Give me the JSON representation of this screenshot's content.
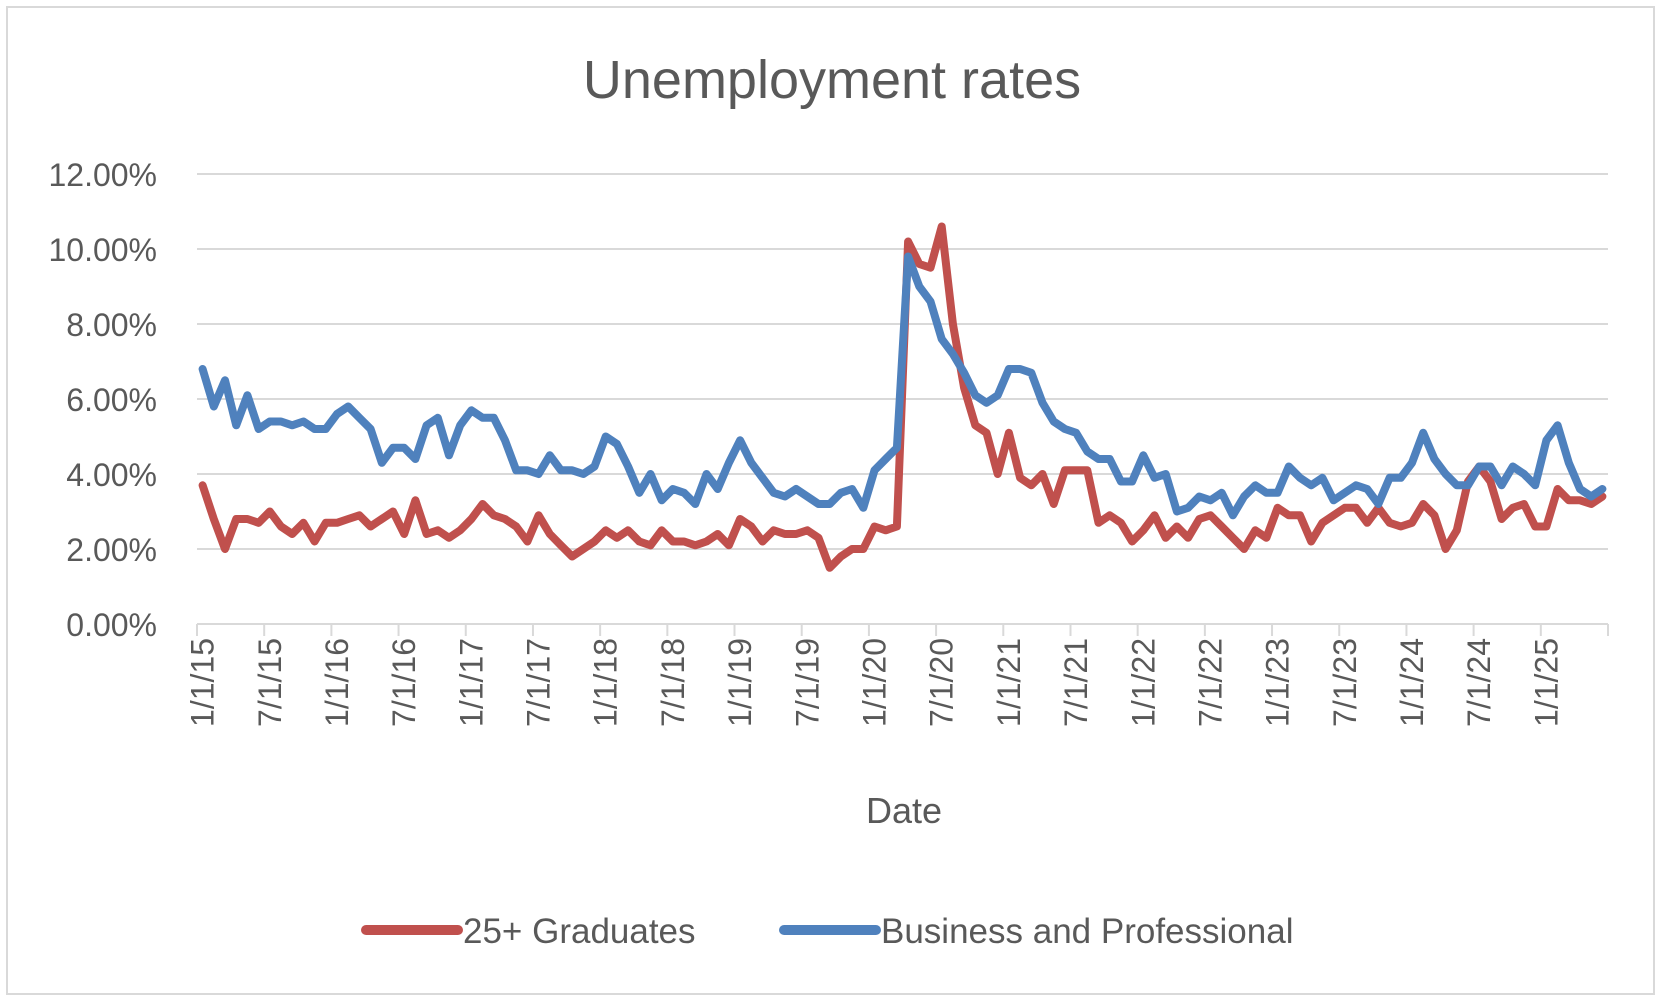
{
  "chart_data": {
    "type": "line",
    "title": "Unemployment rates",
    "xlabel": "Date",
    "ylabel": "",
    "ylim": [
      0,
      0.12
    ],
    "y_ticks": [
      "0.00%",
      "2.00%",
      "4.00%",
      "6.00%",
      "8.00%",
      "10.00%",
      "12.00%"
    ],
    "x_tick_labels": [
      "1/1/15",
      "7/1/15",
      "1/1/16",
      "7/1/16",
      "1/1/17",
      "7/1/17",
      "1/1/18",
      "7/1/18",
      "1/1/19",
      "7/1/19",
      "1/1/20",
      "7/1/20",
      "1/1/21",
      "7/1/21",
      "1/1/22",
      "7/1/22",
      "1/1/23",
      "7/1/23",
      "1/1/24",
      "7/1/24",
      "1/1/25"
    ],
    "x_start": "2015-01",
    "x_end": "2025-12",
    "grid": true,
    "legend_position": "bottom",
    "series": [
      {
        "name": "25+ Graduates",
        "color": "#c0504d",
        "values": [
          0.037,
          0.028,
          0.02,
          0.028,
          0.028,
          0.027,
          0.03,
          0.026,
          0.024,
          0.027,
          0.022,
          0.027,
          0.027,
          0.028,
          0.029,
          0.026,
          0.028,
          0.03,
          0.024,
          0.033,
          0.024,
          0.025,
          0.023,
          0.025,
          0.028,
          0.032,
          0.029,
          0.028,
          0.026,
          0.022,
          0.029,
          0.024,
          0.021,
          0.018,
          0.02,
          0.022,
          0.025,
          0.023,
          0.025,
          0.022,
          0.021,
          0.025,
          0.022,
          0.022,
          0.021,
          0.022,
          0.024,
          0.021,
          0.028,
          0.026,
          0.022,
          0.025,
          0.024,
          0.024,
          0.025,
          0.023,
          0.015,
          0.018,
          0.02,
          0.02,
          0.026,
          0.025,
          0.026,
          0.102,
          0.096,
          0.095,
          0.106,
          0.08,
          0.063,
          0.053,
          0.051,
          0.04,
          0.051,
          0.039,
          0.037,
          0.04,
          0.032,
          0.041,
          0.041,
          0.041,
          0.027,
          0.029,
          0.027,
          0.022,
          0.025,
          0.029,
          0.023,
          0.026,
          0.023,
          0.028,
          0.029,
          0.026,
          0.023,
          0.02,
          0.025,
          0.023,
          0.031,
          0.029,
          0.029,
          0.022,
          0.027,
          0.029,
          0.031,
          0.031,
          0.027,
          0.031,
          0.027,
          0.026,
          0.027,
          0.032,
          0.029,
          0.02,
          0.025,
          0.038,
          0.042,
          0.038,
          0.028,
          0.031,
          0.032,
          0.026,
          0.026,
          0.036,
          0.033,
          0.033,
          0.032,
          0.034
        ]
      },
      {
        "name": "Business and Professional",
        "color": "#4f81bd",
        "values": [
          0.068,
          0.058,
          0.065,
          0.053,
          0.061,
          0.052,
          0.054,
          0.054,
          0.053,
          0.054,
          0.052,
          0.052,
          0.056,
          0.058,
          0.055,
          0.052,
          0.043,
          0.047,
          0.047,
          0.044,
          0.053,
          0.055,
          0.045,
          0.053,
          0.057,
          0.055,
          0.055,
          0.049,
          0.041,
          0.041,
          0.04,
          0.045,
          0.041,
          0.041,
          0.04,
          0.042,
          0.05,
          0.048,
          0.042,
          0.035,
          0.04,
          0.033,
          0.036,
          0.035,
          0.032,
          0.04,
          0.036,
          0.043,
          0.049,
          0.043,
          0.039,
          0.035,
          0.034,
          0.036,
          0.034,
          0.032,
          0.032,
          0.035,
          0.036,
          0.031,
          0.041,
          0.044,
          0.047,
          0.098,
          0.09,
          0.086,
          0.076,
          0.072,
          0.067,
          0.061,
          0.059,
          0.061,
          0.068,
          0.068,
          0.067,
          0.059,
          0.054,
          0.052,
          0.051,
          0.046,
          0.044,
          0.044,
          0.038,
          0.038,
          0.045,
          0.039,
          0.04,
          0.03,
          0.031,
          0.034,
          0.033,
          0.035,
          0.029,
          0.034,
          0.037,
          0.035,
          0.035,
          0.042,
          0.039,
          0.037,
          0.039,
          0.033,
          0.035,
          0.037,
          0.036,
          0.032,
          0.039,
          0.039,
          0.043,
          0.051,
          0.044,
          0.04,
          0.037,
          0.037,
          0.042,
          0.042,
          0.037,
          0.042,
          0.04,
          0.037,
          0.049,
          0.053,
          0.043,
          0.036,
          0.034,
          0.036
        ]
      }
    ]
  }
}
